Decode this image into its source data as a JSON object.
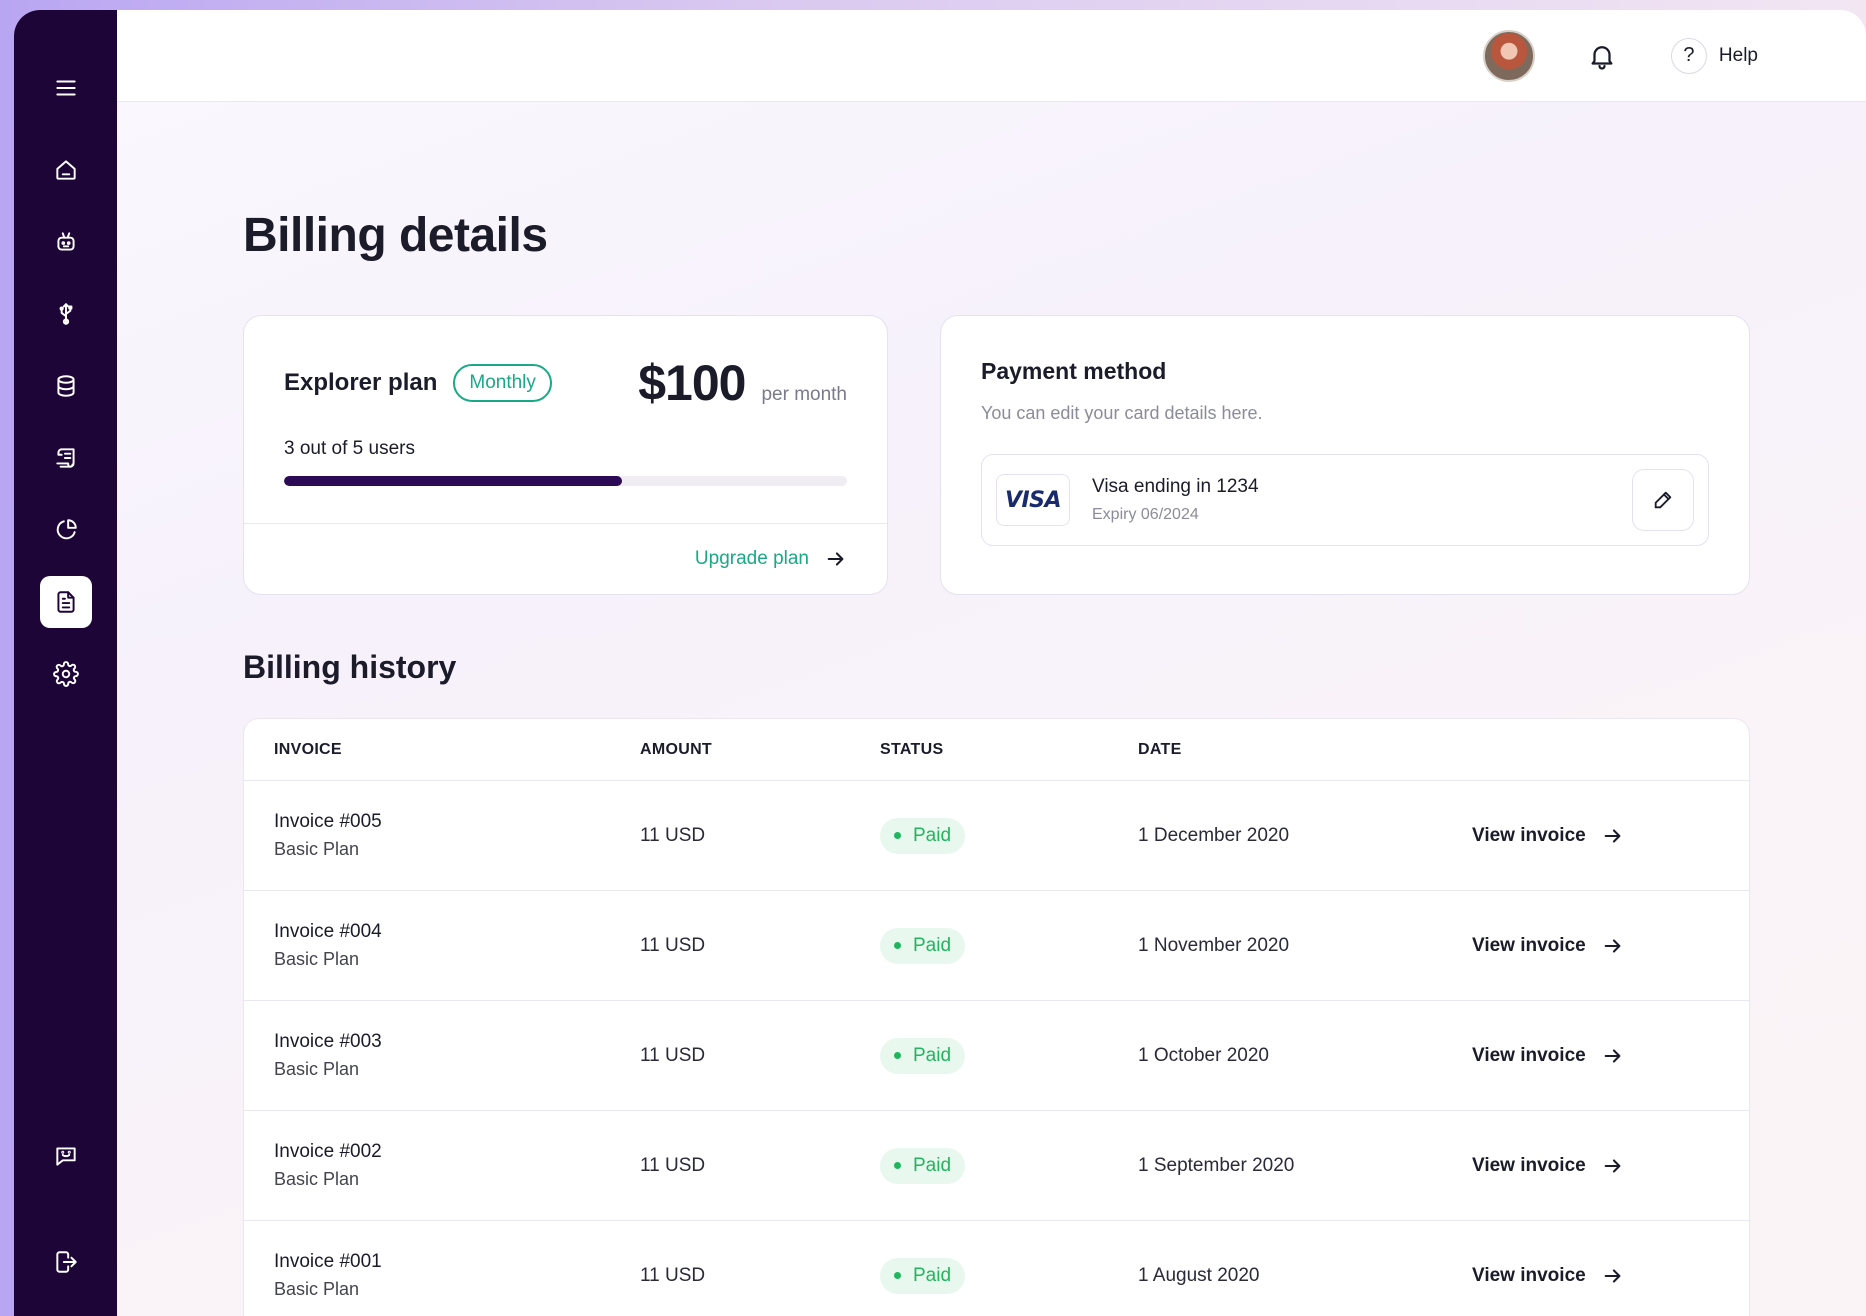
{
  "header": {
    "help_label": "Help",
    "help_icon_glyph": "?"
  },
  "page": {
    "title": "Billing details"
  },
  "plan": {
    "name": "Explorer plan",
    "badge": "Monthly",
    "price": "$100",
    "price_period": "per month",
    "users_text": "3 out of 5 users",
    "users_used": 3,
    "users_total": 5,
    "upgrade_label": "Upgrade plan"
  },
  "payment": {
    "title": "Payment method",
    "subtitle": "You can edit your card details here.",
    "card_brand": "VISA",
    "card_label": "Visa ending in 1234",
    "card_expiry": "Expiry 06/2024"
  },
  "history": {
    "title": "Billing history",
    "columns": {
      "invoice": "INVOICE",
      "amount": "AMOUNT",
      "status": "STATUS",
      "date": "DATE"
    },
    "rows": [
      {
        "invoice": "Invoice #005",
        "plan": "Basic Plan",
        "amount": "11 USD",
        "status": "Paid",
        "date": "1 December 2020",
        "action": "View invoice"
      },
      {
        "invoice": "Invoice #004",
        "plan": "Basic Plan",
        "amount": "11 USD",
        "status": "Paid",
        "date": "1 November 2020",
        "action": "View invoice"
      },
      {
        "invoice": "Invoice #003",
        "plan": "Basic Plan",
        "amount": "11 USD",
        "status": "Paid",
        "date": "1 October 2020",
        "action": "View invoice"
      },
      {
        "invoice": "Invoice #002",
        "plan": "Basic Plan",
        "amount": "11 USD",
        "status": "Paid",
        "date": "1 September 2020",
        "action": "View invoice"
      },
      {
        "invoice": "Invoice #001",
        "plan": "Basic Plan",
        "amount": "11 USD",
        "status": "Paid",
        "date": "1 August 2020",
        "action": "View invoice"
      }
    ]
  },
  "sidebar": {
    "items": [
      "menu-icon",
      "home-icon",
      "robot-icon",
      "usb-icon",
      "database-icon",
      "receipt-icon",
      "pie-chart-icon",
      "document-icon",
      "gear-icon"
    ],
    "active": "document-icon",
    "bottom_items": [
      "chat-icon",
      "logout-icon"
    ]
  },
  "colors": {
    "sidebar_bg": "#1e0538",
    "accent_green": "#1aa985",
    "paid_green": "#22b55e",
    "progress_fill": "#2c0a55"
  }
}
